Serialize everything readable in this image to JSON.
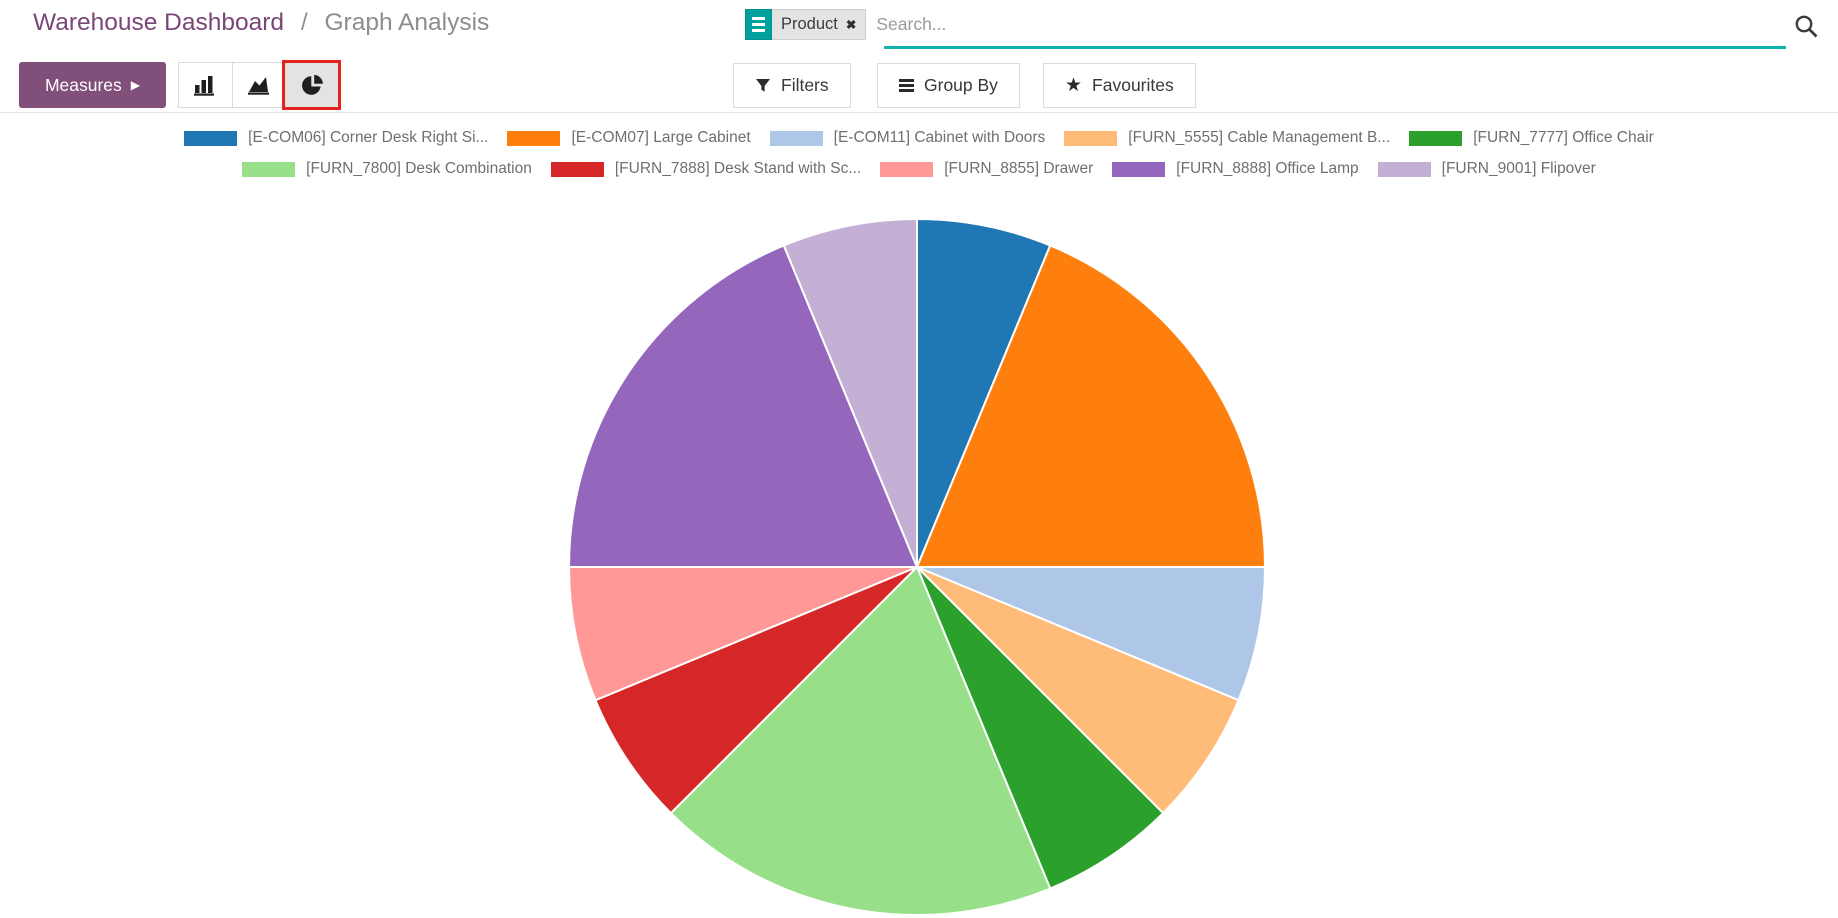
{
  "header": {
    "breadcrumb": {
      "parent": "Warehouse Dashboard",
      "separator": "/",
      "current": "Graph Analysis"
    },
    "search": {
      "facet_label": "Product",
      "placeholder": "Search..."
    }
  },
  "icons": {
    "facet_remove": "✖",
    "measures_caret": "▶",
    "favourites_star": "★"
  },
  "toolbar": {
    "measures_label": "Measures",
    "filters_label": "Filters",
    "group_by_label": "Group By",
    "favourites_label": "Favourites",
    "chart_type_active": "pie"
  },
  "ui_colors": {
    "accent_teal": "#00a09d",
    "primary_purple": "#804f7a",
    "breadcrumb_purple": "#7a4678",
    "active_highlight_red": "#e3231d"
  },
  "chart_data": {
    "type": "pie",
    "title": "",
    "legend_position": "top",
    "start_angle_deg_from_12_oclock": 0,
    "direction": "clockwise",
    "total": 16,
    "slices": [
      {
        "label": "[E-COM06] Corner Desk Right Si...",
        "color": "#1f77b4",
        "value": 1,
        "percent": 6.25
      },
      {
        "label": "[E-COM07] Large Cabinet",
        "color": "#ff7f0e",
        "value": 3,
        "percent": 18.75
      },
      {
        "label": "[E-COM11] Cabinet with Doors",
        "color": "#aec7e8",
        "value": 1,
        "percent": 6.25
      },
      {
        "label": "[FURN_5555] Cable Management B...",
        "color": "#ffbb78",
        "value": 1,
        "percent": 6.25
      },
      {
        "label": "[FURN_7777] Office Chair",
        "color": "#2ca02c",
        "value": 1,
        "percent": 6.25
      },
      {
        "label": "[FURN_7800] Desk Combination",
        "color": "#98df8a",
        "value": 3,
        "percent": 18.75
      },
      {
        "label": "[FURN_7888] Desk Stand with Sc...",
        "color": "#d62728",
        "value": 1,
        "percent": 6.25
      },
      {
        "label": "[FURN_8855] Drawer",
        "color": "#ff9896",
        "value": 1,
        "percent": 6.25
      },
      {
        "label": "[FURN_8888] Office Lamp",
        "color": "#9467bd",
        "value": 3,
        "percent": 18.75
      },
      {
        "label": "[FURN_9001] Flipover",
        "color": "#c5b0d5",
        "value": 1,
        "percent": 6.25
      }
    ]
  }
}
